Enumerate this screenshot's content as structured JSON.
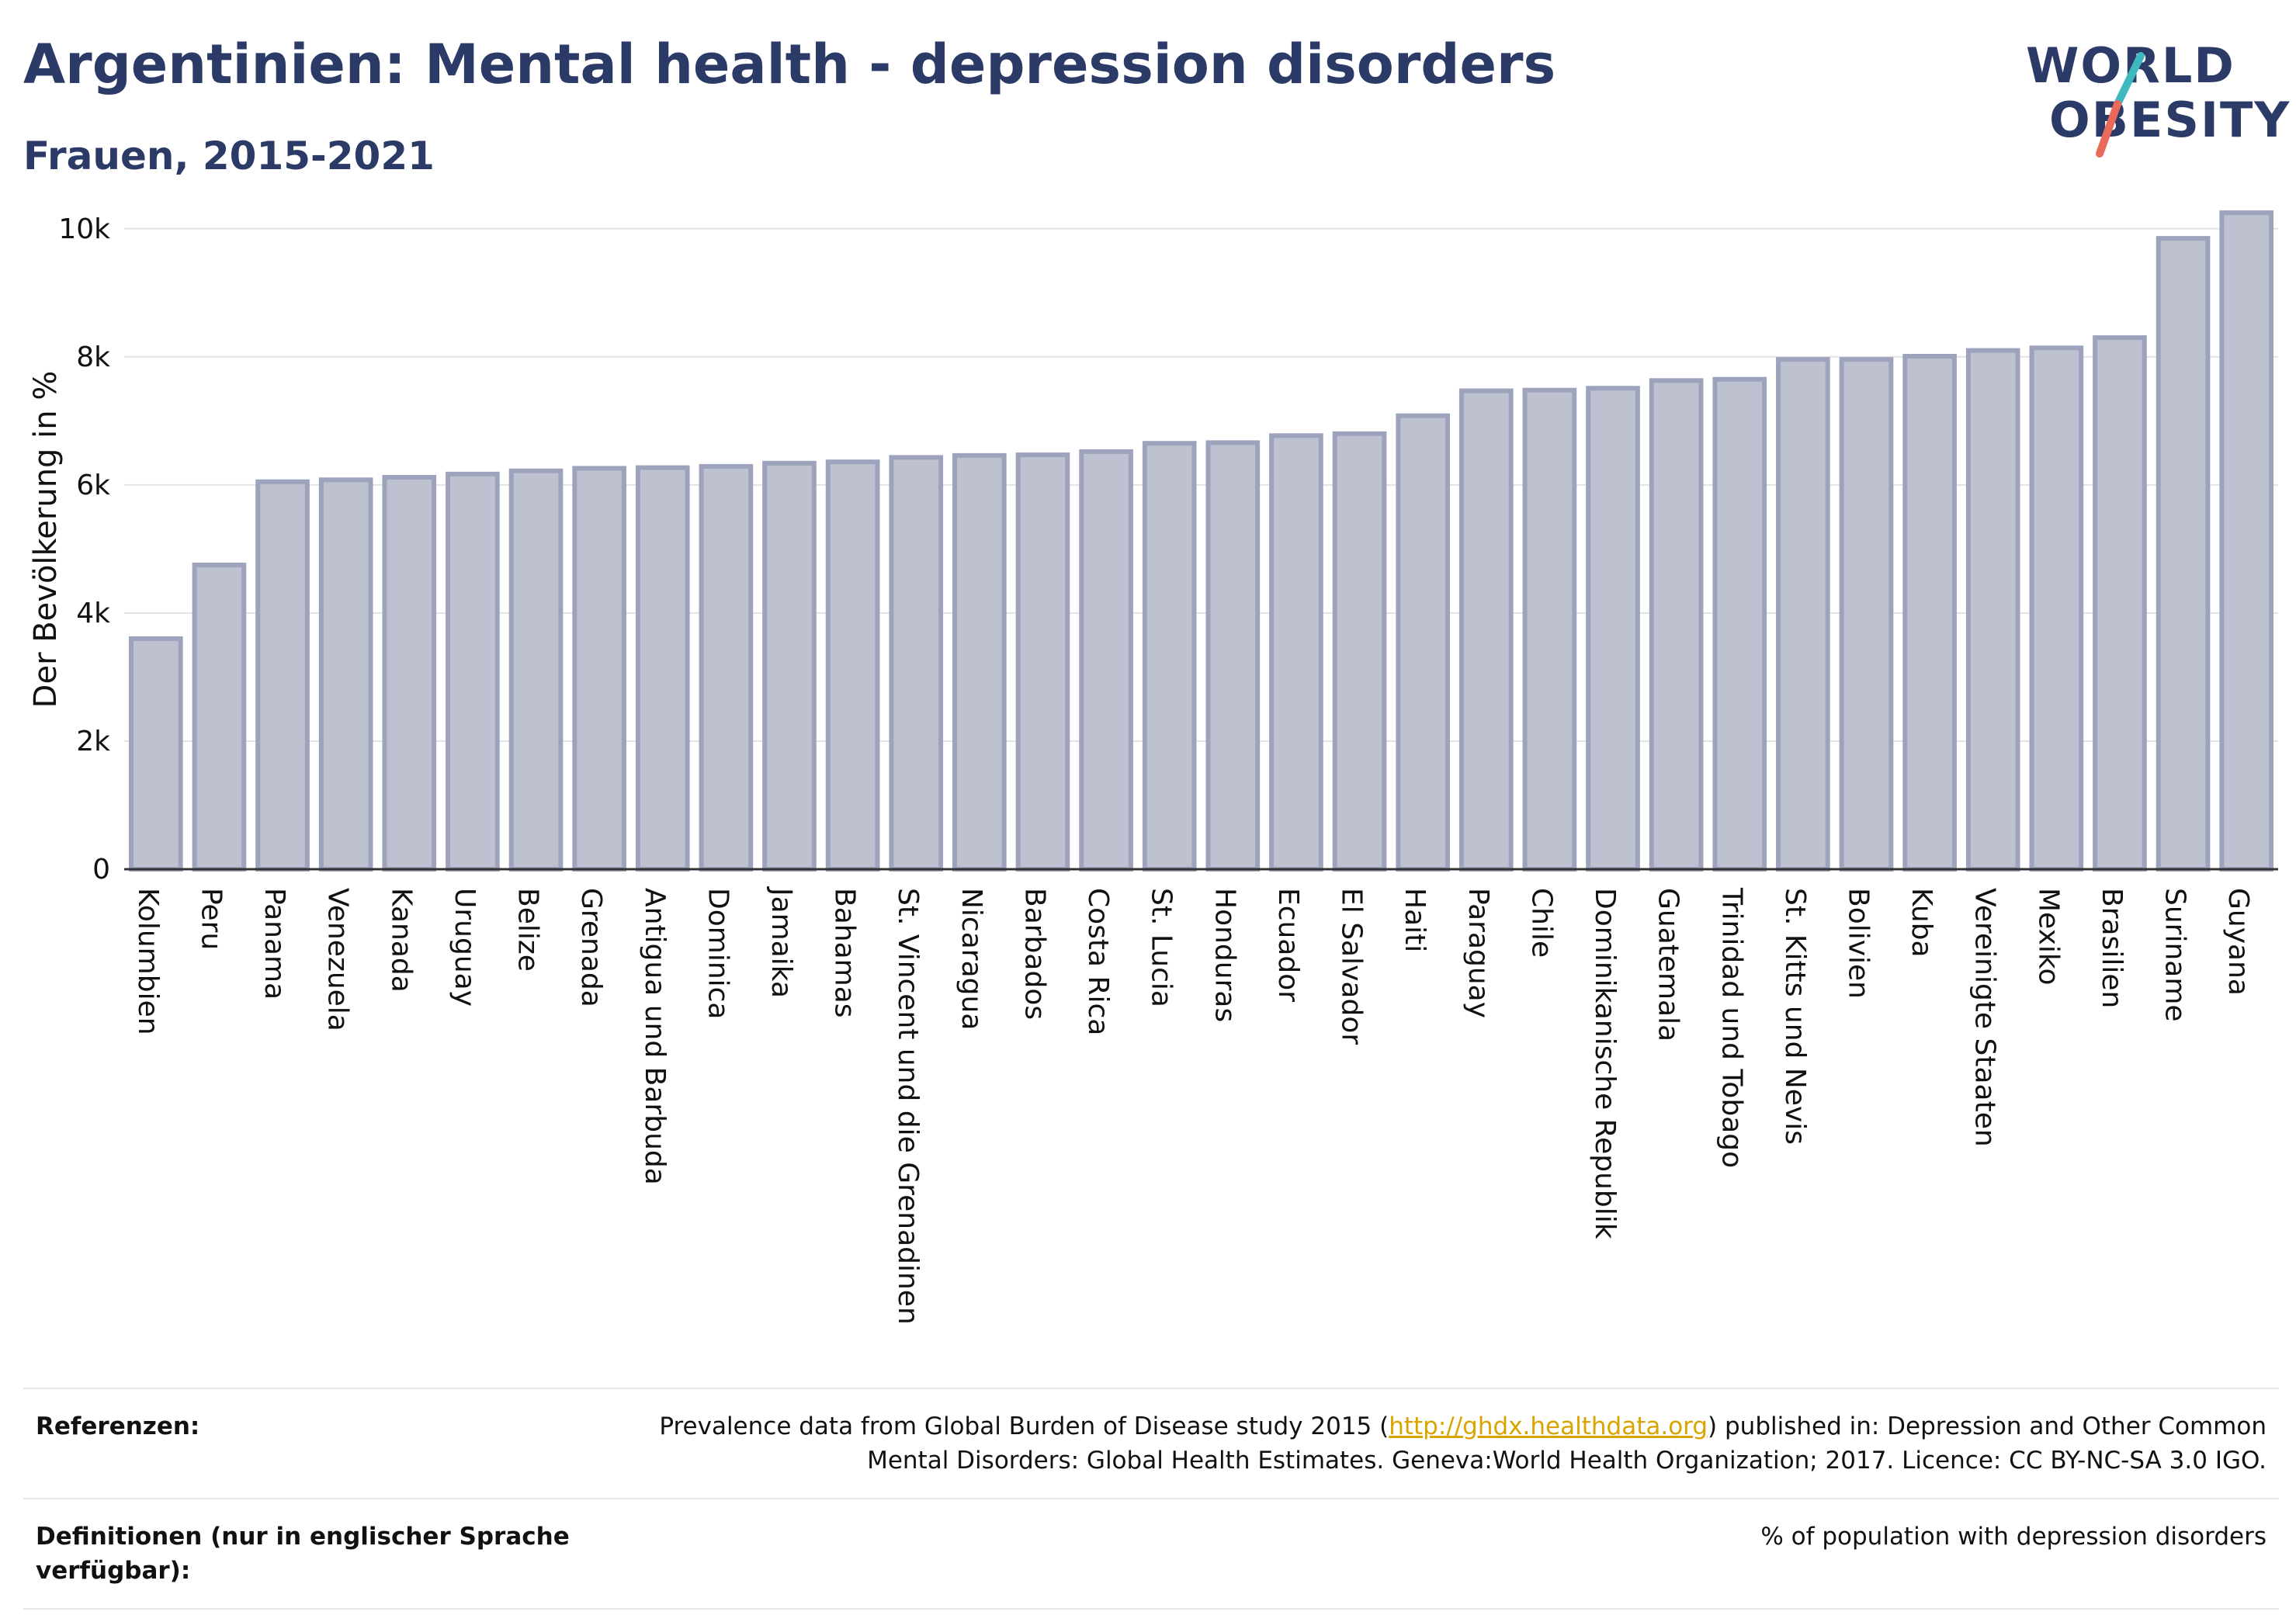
{
  "header": {
    "title": "Argentinien: Mental health - depression disorders",
    "subtitle": "Frauen, 2015-2021"
  },
  "logo": {
    "line1": "WORLD",
    "line2": "OBESITY",
    "slash_colors": [
      "#3fb9c0",
      "#e96a5a"
    ]
  },
  "chart_data": {
    "type": "bar",
    "ylabel": "Der Bevölkerung in %",
    "xlabel": "",
    "ylim": [
      0,
      10300
    ],
    "yticks": [
      0,
      2000,
      4000,
      6000,
      8000,
      10000
    ],
    "ytick_labels": [
      "0",
      "2k",
      "4k",
      "6k",
      "8k",
      "10k"
    ],
    "grid": true,
    "bar_color": "#bec1cf",
    "bar_border_color": "#9ea3bd",
    "categories": [
      "Kolumbien",
      "Peru",
      "Panama",
      "Venezuela",
      "Kanada",
      "Uruguay",
      "Belize",
      "Grenada",
      "Antigua und Barbuda",
      "Dominica",
      "Jamaika",
      "Bahamas",
      "St. Vincent und die Grenadinen",
      "Nicaragua",
      "Barbados",
      "Costa Rica",
      "St. Lucia",
      "Honduras",
      "Ecuador",
      "El Salvador",
      "Haiti",
      "Paraguay",
      "Chile",
      "Dominikanische Republik",
      "Guatemala",
      "Trinidad und Tobago",
      "St. Kitts und Nevis",
      "Bolivien",
      "Kuba",
      "Vereinigte Staaten",
      "Mexiko",
      "Brasilien",
      "Suriname",
      "Guyana"
    ],
    "values": [
      3600,
      4750,
      6050,
      6080,
      6120,
      6170,
      6220,
      6260,
      6270,
      6290,
      6340,
      6360,
      6430,
      6460,
      6470,
      6520,
      6650,
      6660,
      6770,
      6800,
      7080,
      7470,
      7480,
      7510,
      7630,
      7650,
      7960,
      7960,
      8010,
      8100,
      8140,
      8300,
      9850,
      10250
    ]
  },
  "footer": {
    "references_label": "Referenzen:",
    "references_text_before": "Prevalence data from Global Burden of Disease study 2015 (",
    "references_link": "http://ghdx.healthdata.org",
    "references_text_after": ") published in: Depression and Other Common",
    "references_line2": "Mental Disorders: Global Health Estimates. Geneva:World Health Organization; 2017. Licence: CC BY-NC-SA 3.0 IGO.",
    "definitions_label": "Definitionen (nur in englischer Sprache verfügbar):",
    "definitions_text": "% of population with depression disorders"
  }
}
